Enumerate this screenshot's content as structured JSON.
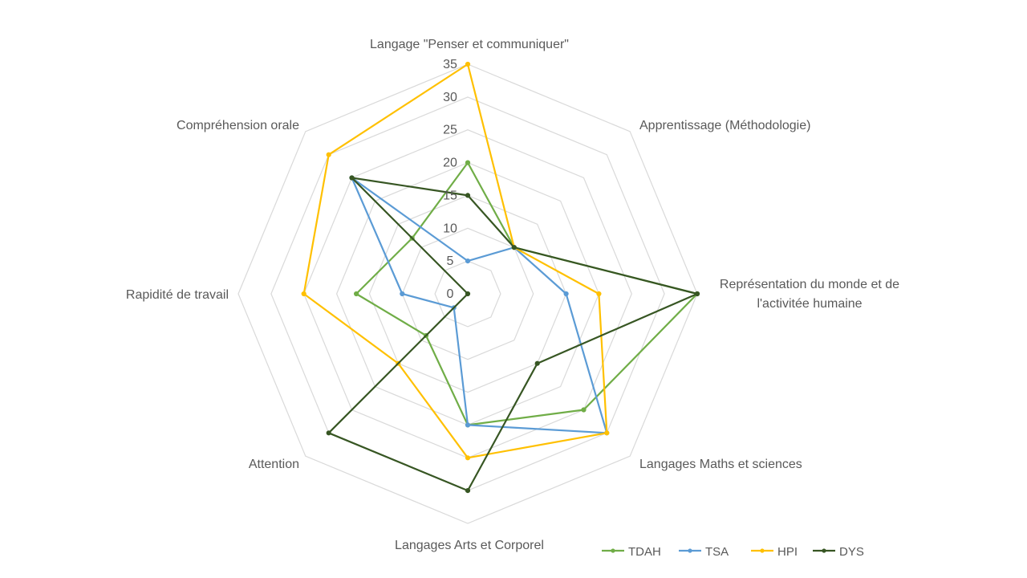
{
  "chart_data": {
    "type": "radar",
    "title": "",
    "categories": [
      "Langage \"Penser et communiquer\"",
      "Apprentissage (Méthodologie)",
      "Représentation du monde et de l'activitée humaine",
      "Langages Maths et sciences",
      "Langages Arts et Corporel",
      "Attention",
      "Rapidité de travail",
      "Compréhension orale"
    ],
    "category_label_lines": [
      [
        "Langage \"Penser et communiquer\""
      ],
      [
        "Apprentissage (Méthodologie)"
      ],
      [
        "Représentation du monde et de",
        "l'activitée humaine"
      ],
      [
        "Langages Maths et sciences"
      ],
      [
        "Langages Arts et Corporel"
      ],
      [
        "Attention"
      ],
      [
        "Rapidité de travail"
      ],
      [
        "Compréhension orale"
      ]
    ],
    "r_ticks": [
      0,
      5,
      10,
      15,
      20,
      25,
      30,
      35
    ],
    "rlim": [
      0,
      35
    ],
    "grid": true,
    "legend_position": "bottom-right",
    "series": [
      {
        "name": "TDAH",
        "color": "#70AD47",
        "values": [
          20,
          10,
          35,
          25,
          20,
          9,
          17,
          12
        ]
      },
      {
        "name": "TSA",
        "color": "#5B9BD5",
        "values": [
          5,
          10,
          15,
          30,
          20,
          3,
          10,
          25
        ]
      },
      {
        "name": "HPI",
        "color": "#FFC000",
        "values": [
          35,
          10,
          20,
          30,
          25,
          15,
          25,
          30
        ]
      },
      {
        "name": "DYS",
        "color": "#375623",
        "values": [
          15,
          10,
          35,
          15,
          30,
          30,
          0,
          25
        ]
      }
    ]
  }
}
